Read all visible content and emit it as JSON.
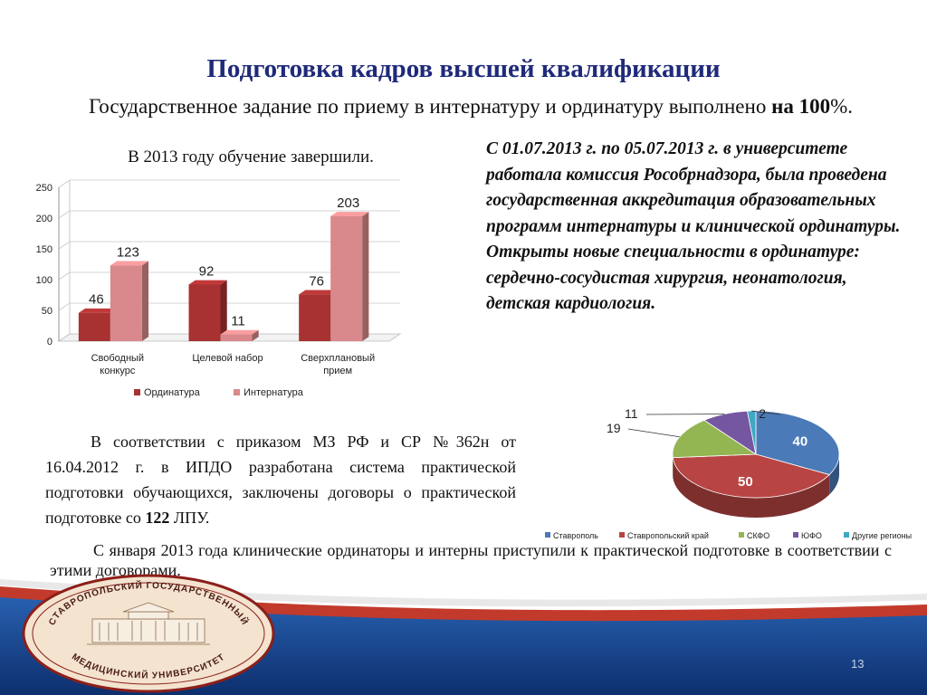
{
  "title": "Подготовка кадров высшей квалификации",
  "subtitle": {
    "text": "Государственное задание по приему в интернатуру и ординатуру выполнено",
    "bold": "на 100",
    "tail": "%."
  },
  "chart_caption": "В 2013 году обучение завершили.",
  "commission_text": "С 01.07.2013 г. по 05.07.2013 г. в университете работала комиссия Рособрнадзора, была проведена государственная аккредитация образовательных программ интернатуры и клинической ординатуры. Открыты новые специальности в ординатуре: сердечно-сосудистая хирургия, неонатология, детская кардиология.",
  "order_text": {
    "part1": "В соответствии с приказом МЗ РФ и СР №362н от 16.04.2012 г. в ИПДО разработана система практической подготовки обучающихся, заключены договоры о практической подготовке со",
    "bold": "122",
    "part2": "ЛПУ."
  },
  "january_text": "С января 2013 года клинические ординаторы и интерны приступили к практической подготовке в соответствии с этими договорами.",
  "logo": {
    "top_text": "СТАВРОПОЛЬСКИЙ ГОСУДАРСТВЕННЫЙ",
    "bottom_text": "МЕДИЦИНСКИЙ УНИВЕРСИТЕТ"
  },
  "page_number": "13",
  "colors": {
    "title": "#1f2a7a",
    "ordinatura": "#a83232",
    "internatura": "#d9898b",
    "pie": [
      "#4a7ab8",
      "#b84543",
      "#93b552",
      "#7556a0",
      "#3fa8c4"
    ]
  },
  "chart_data": [
    {
      "type": "bar",
      "categories": [
        "Свободный конкурс",
        "Целевой набор",
        "Сверхплановый прием"
      ],
      "series": [
        {
          "name": "Ординатура",
          "values": [
            46,
            92,
            76
          ]
        },
        {
          "name": "Интернатура",
          "values": [
            123,
            11,
            203
          ]
        }
      ],
      "ylim": [
        0,
        250
      ],
      "yticks": [
        "0",
        "50",
        "100",
        "150",
        "200",
        "250"
      ],
      "legend": "bottom",
      "grid": true
    },
    {
      "type": "pie",
      "labels": [
        "Ставрополь",
        "Ставропольский край",
        "СКФО",
        "ЮФО",
        "Другие регионы"
      ],
      "values": [
        40,
        50,
        19,
        11,
        2
      ],
      "value_labels": [
        "40",
        "50",
        "19",
        "11",
        "2"
      ],
      "legend": "bottom"
    }
  ]
}
